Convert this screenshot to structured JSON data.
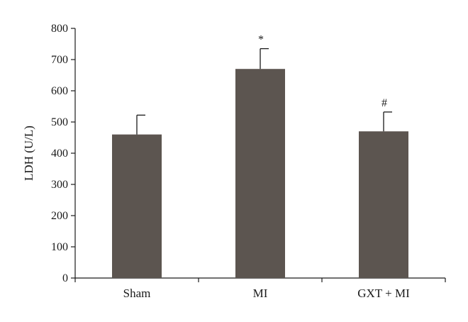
{
  "chart_data": {
    "type": "bar",
    "title": "",
    "xlabel": "",
    "ylabel": "LDH (U/L)",
    "ylim": [
      0,
      800
    ],
    "yticks": [
      0,
      100,
      200,
      300,
      400,
      500,
      600,
      700,
      800
    ],
    "categories": [
      "Sham",
      "MI",
      "GXT + MI"
    ],
    "values": [
      460,
      670,
      470
    ],
    "error_upper": [
      522,
      735,
      532
    ],
    "annotations": [
      "",
      "*",
      "#"
    ],
    "bar_color": "#5c5550",
    "grid": false,
    "legend": "none"
  }
}
